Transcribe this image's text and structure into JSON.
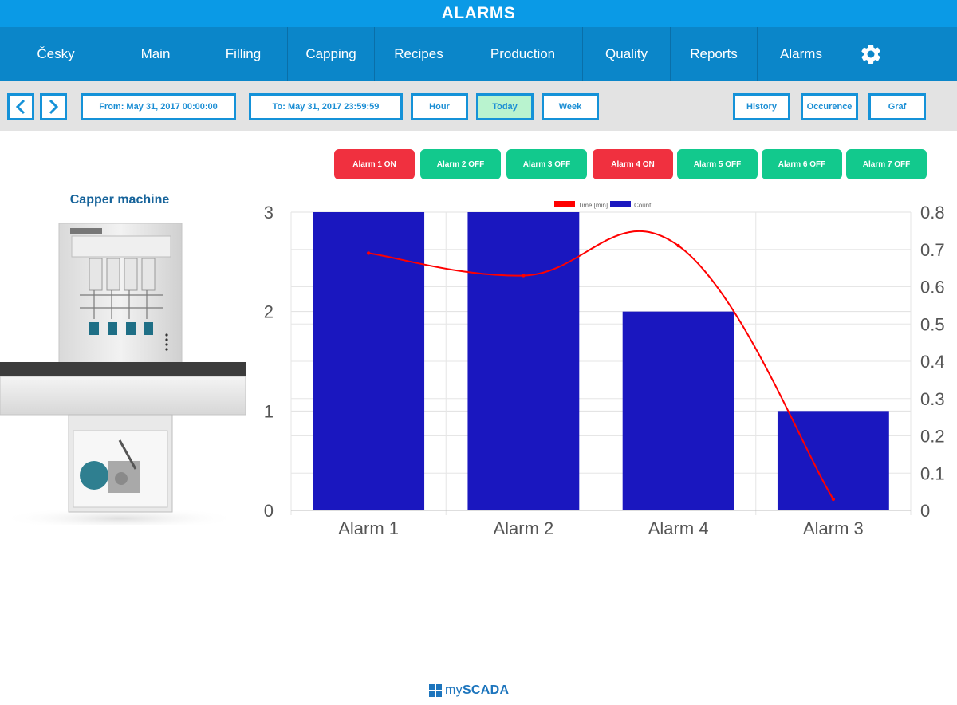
{
  "app": {
    "title": "ALARMS"
  },
  "nav": {
    "items": [
      "Česky",
      "Main",
      "Filling",
      "Capping",
      "Recipes",
      "Production",
      "Quality",
      "Reports",
      "Alarms"
    ],
    "settings_icon": "gear-icon"
  },
  "toolbar": {
    "prev_icon": "chevron-left-icon",
    "next_icon": "chevron-right-icon",
    "from": "From: May 31, 2017 00:00:00",
    "to": "To: May 31, 2017 23:59:59",
    "hour": "Hour",
    "today": "Today",
    "week": "Week",
    "history": "History",
    "occurence": "Occurence",
    "graf": "Graf",
    "active_color": "#b9f3cf",
    "border_color": "#1592d8"
  },
  "alarm_filters": [
    {
      "label": "Alarm 1 ON",
      "state": "on"
    },
    {
      "label": "Alarm 2 OFF",
      "state": "off"
    },
    {
      "label": "Alarm 3 OFF",
      "state": "off"
    },
    {
      "label": "Alarm 4 ON",
      "state": "on"
    },
    {
      "label": "Alarm 5 OFF",
      "state": "off"
    },
    {
      "label": "Alarm 6 OFF",
      "state": "off"
    },
    {
      "label": "Alarm 7 OFF",
      "state": "off"
    }
  ],
  "colors": {
    "on": "#f0303f",
    "off": "#12c98d",
    "nav": "#0b86c9",
    "title": "#0a9ae6"
  },
  "machine": {
    "title": "Capper machine"
  },
  "chart_data": {
    "type": "bar",
    "categories": [
      "Alarm 1",
      "Alarm 2",
      "Alarm 4",
      "Alarm 3"
    ],
    "series": [
      {
        "name": "Count",
        "type": "bar",
        "axis": "left",
        "color": "#1a17bf",
        "values": [
          3,
          3,
          2,
          1
        ]
      },
      {
        "name": "Time [min]",
        "type": "line",
        "axis": "right",
        "color": "#ff0000",
        "values": [
          0.69,
          0.63,
          0.71,
          0.03
        ]
      }
    ],
    "ylim": [
      0,
      3
    ],
    "y_ticks": [
      0,
      1,
      2,
      3
    ],
    "y2lim": [
      0,
      0.8
    ],
    "y2_ticks": [
      0,
      0.1,
      0.2,
      0.3,
      0.4,
      0.5,
      0.6,
      0.7,
      0.8
    ],
    "grid": true,
    "legend": "top-center"
  },
  "footer": {
    "brand_prefix": "my",
    "brand_suffix": "SCADA"
  }
}
